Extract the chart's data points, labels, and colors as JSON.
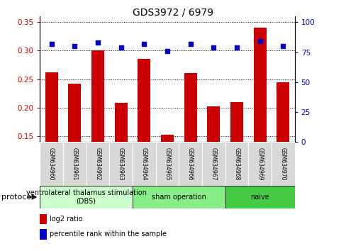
{
  "title": "GDS3972 / 6979",
  "samples": [
    "GSM634960",
    "GSM634961",
    "GSM634962",
    "GSM634963",
    "GSM634964",
    "GSM634965",
    "GSM634966",
    "GSM634967",
    "GSM634968",
    "GSM634969",
    "GSM634970"
  ],
  "log2_ratio": [
    0.262,
    0.242,
    0.3,
    0.208,
    0.285,
    0.152,
    0.26,
    0.202,
    0.21,
    0.34,
    0.245
  ],
  "percentile_rank": [
    82,
    80,
    83,
    79,
    82,
    76,
    82,
    79,
    79,
    84,
    80
  ],
  "bar_color": "#cc0000",
  "dot_color": "#0000cc",
  "ylim_left": [
    0.14,
    0.36
  ],
  "ylim_right": [
    0,
    105
  ],
  "yticks_left": [
    0.15,
    0.2,
    0.25,
    0.3,
    0.35
  ],
  "yticks_right": [
    0,
    25,
    50,
    75,
    100
  ],
  "groups": [
    {
      "label": "ventrolateral thalamus stimulation\n(DBS)",
      "start": 0,
      "end": 3,
      "color": "#ccffcc"
    },
    {
      "label": "sham operation",
      "start": 4,
      "end": 7,
      "color": "#88ee88"
    },
    {
      "label": "naive",
      "start": 8,
      "end": 10,
      "color": "#44cc44"
    }
  ],
  "protocol_label": "protocol",
  "legend_bar_label": "log2 ratio",
  "legend_dot_label": "percentile rank within the sample",
  "bar_bottom": 0.14,
  "bar_width": 0.55,
  "background_color": "#ffffff",
  "tick_label_color_left": "#cc0000",
  "tick_label_color_right": "#0000cc",
  "title_fontsize": 10,
  "tick_fontsize": 7.5,
  "label_fontsize": 5.5,
  "group_fontsize": 7,
  "legend_fontsize": 7
}
